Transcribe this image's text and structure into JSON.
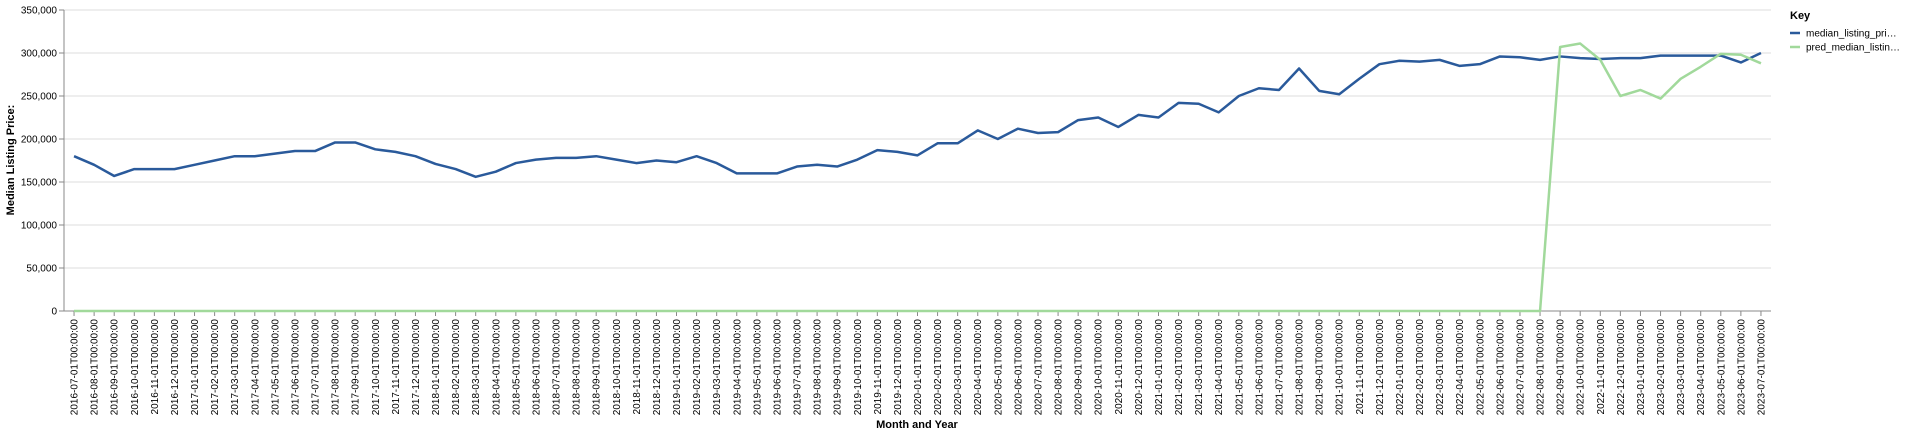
{
  "chart_data": {
    "type": "line",
    "x_label": "Month and Year",
    "y_label": "Median Listing Price:",
    "legend_title": "Key",
    "legend_position": "right",
    "grid": true,
    "categories": [
      "2016-07-01T00:00:00",
      "2016-08-01T00:00:00",
      "2016-09-01T00:00:00",
      "2016-10-01T00:00:00",
      "2016-11-01T00:00:00",
      "2016-12-01T00:00:00",
      "2017-01-01T00:00:00",
      "2017-02-01T00:00:00",
      "2017-03-01T00:00:00",
      "2017-04-01T00:00:00",
      "2017-05-01T00:00:00",
      "2017-06-01T00:00:00",
      "2017-07-01T00:00:00",
      "2017-08-01T00:00:00",
      "2017-09-01T00:00:00",
      "2017-10-01T00:00:00",
      "2017-11-01T00:00:00",
      "2017-12-01T00:00:00",
      "2018-01-01T00:00:00",
      "2018-02-01T00:00:00",
      "2018-03-01T00:00:00",
      "2018-04-01T00:00:00",
      "2018-05-01T00:00:00",
      "2018-06-01T00:00:00",
      "2018-07-01T00:00:00",
      "2018-08-01T00:00:00",
      "2018-09-01T00:00:00",
      "2018-10-01T00:00:00",
      "2018-11-01T00:00:00",
      "2018-12-01T00:00:00",
      "2019-01-01T00:00:00",
      "2019-02-01T00:00:00",
      "2019-03-01T00:00:00",
      "2019-04-01T00:00:00",
      "2019-05-01T00:00:00",
      "2019-06-01T00:00:00",
      "2019-07-01T00:00:00",
      "2019-08-01T00:00:00",
      "2019-09-01T00:00:00",
      "2019-10-01T00:00:00",
      "2019-11-01T00:00:00",
      "2019-12-01T00:00:00",
      "2020-01-01T00:00:00",
      "2020-02-01T00:00:00",
      "2020-03-01T00:00:00",
      "2020-04-01T00:00:00",
      "2020-05-01T00:00:00",
      "2020-06-01T00:00:00",
      "2020-07-01T00:00:00",
      "2020-08-01T00:00:00",
      "2020-09-01T00:00:00",
      "2020-10-01T00:00:00",
      "2020-11-01T00:00:00",
      "2020-12-01T00:00:00",
      "2021-01-01T00:00:00",
      "2021-02-01T00:00:00",
      "2021-03-01T00:00:00",
      "2021-04-01T00:00:00",
      "2021-05-01T00:00:00",
      "2021-06-01T00:00:00",
      "2021-07-01T00:00:00",
      "2021-08-01T00:00:00",
      "2021-09-01T00:00:00",
      "2021-10-01T00:00:00",
      "2021-11-01T00:00:00",
      "2021-12-01T00:00:00",
      "2022-01-01T00:00:00",
      "2022-02-01T00:00:00",
      "2022-03-01T00:00:00",
      "2022-04-01T00:00:00",
      "2022-05-01T00:00:00",
      "2022-06-01T00:00:00",
      "2022-07-01T00:00:00",
      "2022-08-01T00:00:00",
      "2022-09-01T00:00:00",
      "2022-10-01T00:00:00",
      "2022-11-01T00:00:00",
      "2022-12-01T00:00:00",
      "2023-01-01T00:00:00",
      "2023-02-01T00:00:00",
      "2023-03-01T00:00:00",
      "2023-04-01T00:00:00",
      "2023-05-01T00:00:00",
      "2023-06-01T00:00:00",
      "2023-07-01T00:00:00"
    ],
    "series": [
      {
        "name": "median_listing_pri…",
        "color": "#2a5a9b",
        "values": [
          180000,
          170000,
          157000,
          165000,
          165000,
          165000,
          170000,
          175000,
          180000,
          180000,
          183000,
          186000,
          186000,
          196000,
          196000,
          188000,
          185000,
          180000,
          171000,
          165000,
          156000,
          162000,
          172000,
          176000,
          178000,
          178000,
          180000,
          176000,
          172000,
          175000,
          173000,
          180000,
          172000,
          160000,
          160000,
          160000,
          168000,
          170000,
          168000,
          176000,
          187000,
          185000,
          181000,
          195000,
          195000,
          210000,
          200000,
          212000,
          207000,
          208000,
          222000,
          225000,
          214000,
          228000,
          225000,
          242000,
          241000,
          231000,
          250000,
          259000,
          257000,
          282000,
          256000,
          252000,
          270000,
          287000,
          291000,
          290000,
          292000,
          285000,
          287000,
          296000,
          295000,
          292000,
          296000,
          294000,
          293000,
          294000,
          294000,
          297000,
          297000,
          297000,
          297000,
          289000,
          300000
        ]
      },
      {
        "name": "pred_median_listin…",
        "color": "#a1d99b",
        "values": [
          0,
          0,
          0,
          0,
          0,
          0,
          0,
          0,
          0,
          0,
          0,
          0,
          0,
          0,
          0,
          0,
          0,
          0,
          0,
          0,
          0,
          0,
          0,
          0,
          0,
          0,
          0,
          0,
          0,
          0,
          0,
          0,
          0,
          0,
          0,
          0,
          0,
          0,
          0,
          0,
          0,
          0,
          0,
          0,
          0,
          0,
          0,
          0,
          0,
          0,
          0,
          0,
          0,
          0,
          0,
          0,
          0,
          0,
          0,
          0,
          0,
          0,
          0,
          0,
          0,
          0,
          0,
          0,
          0,
          0,
          0,
          0,
          0,
          0,
          307000,
          311000,
          292000,
          250000,
          257000,
          247000,
          270000,
          284000,
          299000,
          298000,
          288000
        ]
      }
    ],
    "ylim": [
      0,
      350000
    ],
    "yticks": [
      0,
      {
        "value": 50000,
        "label": "50,000"
      },
      {
        "value": 100000,
        "label": "100,000"
      },
      {
        "value": 150000,
        "label": "150,000"
      },
      {
        "value": 200000,
        "label": "200,000"
      },
      {
        "value": 250000,
        "label": "250,000"
      },
      {
        "value": 300000,
        "label": "300,000"
      },
      {
        "value": 350000,
        "label": "350,000"
      }
    ]
  }
}
